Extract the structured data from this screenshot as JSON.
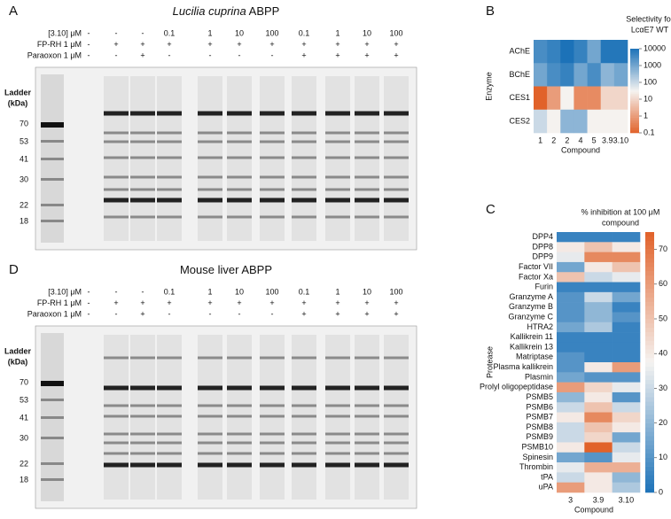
{
  "gels": [
    {
      "letter": "A",
      "title_italic": "Lucilia cuprina",
      "title_rest": "ABPP",
      "header": [
        {
          "label": "[3.10] μM",
          "cells": [
            "-",
            "-",
            "-",
            "0.1",
            "1",
            "10",
            "100",
            "0.1",
            "1",
            "10",
            "100"
          ]
        },
        {
          "label": "FP-RH 1 μM",
          "cells": [
            "-",
            "+",
            "+",
            "+",
            "+",
            "+",
            "+",
            "+",
            "+",
            "+",
            "+"
          ]
        },
        {
          "label": "Paraoxon 1 μM",
          "cells": [
            "-",
            "-",
            "+",
            "-",
            "-",
            "-",
            "-",
            "+",
            "+",
            "+",
            "+"
          ]
        }
      ],
      "ladder_label": [
        "Ladder",
        "(kDa)"
      ],
      "markers": [
        70,
        53,
        41,
        30,
        22,
        18
      ]
    },
    {
      "letter": "D",
      "title_italic": "",
      "title_rest": "Mouse liver ABPP",
      "header": [
        {
          "label": "[3.10] μM",
          "cells": [
            "-",
            "-",
            "-",
            "0.1",
            "1",
            "10",
            "100",
            "0.1",
            "1",
            "10",
            "100"
          ]
        },
        {
          "label": "FP-RH 1 μM",
          "cells": [
            "-",
            "+",
            "+",
            "+",
            "+",
            "+",
            "+",
            "+",
            "+",
            "+",
            "+"
          ]
        },
        {
          "label": "Paraoxon 1 μM",
          "cells": [
            "-",
            "-",
            "+",
            "-",
            "-",
            "-",
            "-",
            "+",
            "+",
            "+",
            "+"
          ]
        }
      ],
      "ladder_label": [
        "Ladder",
        "(kDa)"
      ],
      "markers": [
        70,
        53,
        41,
        30,
        22,
        18
      ]
    }
  ],
  "chart_data": [
    {
      "type": "heatmap",
      "letter": "B",
      "x_label": "Compound",
      "y_label": "Enzyme",
      "x": [
        "1",
        "2",
        "2",
        "4",
        "5",
        "3.9",
        "3.10"
      ],
      "y": [
        "AChE",
        "BChE",
        "CES1",
        "CES2"
      ],
      "values": [
        [
          3000,
          5000,
          10000,
          5000,
          1000,
          8000,
          8000
        ],
        [
          1000,
          3000,
          5000,
          1000,
          3000,
          500,
          1000
        ],
        [
          0.1,
          1,
          30,
          0.5,
          0.5,
          10,
          10
        ],
        [
          100,
          30,
          500,
          500,
          30,
          30,
          30
        ]
      ],
      "colorbar_label": [
        "Selectivity for",
        "LcαE7 WT"
      ],
      "log_scale": true,
      "clim": [
        0.1,
        10000
      ],
      "cticks": [
        10000,
        1000,
        100,
        10,
        1,
        0.1
      ],
      "colormap": [
        "#e1622a",
        "#f5f3f1",
        "#1c72b8"
      ]
    },
    {
      "type": "heatmap",
      "letter": "C",
      "x_label": "Compound",
      "y_label": "Protease",
      "x": [
        "3",
        "3.9",
        "3.10"
      ],
      "y": [
        "DPP4",
        "DPP8",
        "DPP9",
        "Factor VII",
        "Factor Xa",
        "Furin",
        "Granzyme A",
        "Granzyme B",
        "Granzyme C",
        "HTRA2",
        "Kallikrein 11",
        "Kallikrein 13",
        "Matriptase",
        "Plasma kallikrein",
        "Plasmin",
        "Prolyl oligopeptidase",
        "PSMB5",
        "PSMB6",
        "PSMB7",
        "PSMB8",
        "PSMB9",
        "PSMB10",
        "Spinesin",
        "Thrombin",
        "tPA",
        "uPA"
      ],
      "values": [
        [
          5,
          5,
          5
        ],
        [
          40,
          50,
          40
        ],
        [
          35,
          65,
          65
        ],
        [
          15,
          40,
          50
        ],
        [
          50,
          30,
          35
        ],
        [
          5,
          5,
          5
        ],
        [
          10,
          30,
          15
        ],
        [
          10,
          20,
          5
        ],
        [
          10,
          20,
          10
        ],
        [
          15,
          25,
          5
        ],
        [
          5,
          5,
          5
        ],
        [
          5,
          5,
          5
        ],
        [
          10,
          5,
          5
        ],
        [
          10,
          40,
          60
        ],
        [
          15,
          10,
          10
        ],
        [
          60,
          45,
          35
        ],
        [
          20,
          40,
          10
        ],
        [
          30,
          50,
          30
        ],
        [
          40,
          65,
          45
        ],
        [
          30,
          50,
          40
        ],
        [
          30,
          45,
          15
        ],
        [
          40,
          75,
          30
        ],
        [
          15,
          10,
          35
        ],
        [
          35,
          55,
          55
        ],
        [
          30,
          40,
          20
        ],
        [
          60,
          40,
          25
        ]
      ],
      "colorbar_label": [
        "% inhibition at 100 μM",
        "compound"
      ],
      "log_scale": false,
      "clim": [
        0,
        75
      ],
      "cticks": [
        70,
        60,
        50,
        40,
        30,
        20,
        10,
        0
      ],
      "colormap": [
        "#1c72b8",
        "#f5f3f1",
        "#e1622a"
      ]
    }
  ]
}
